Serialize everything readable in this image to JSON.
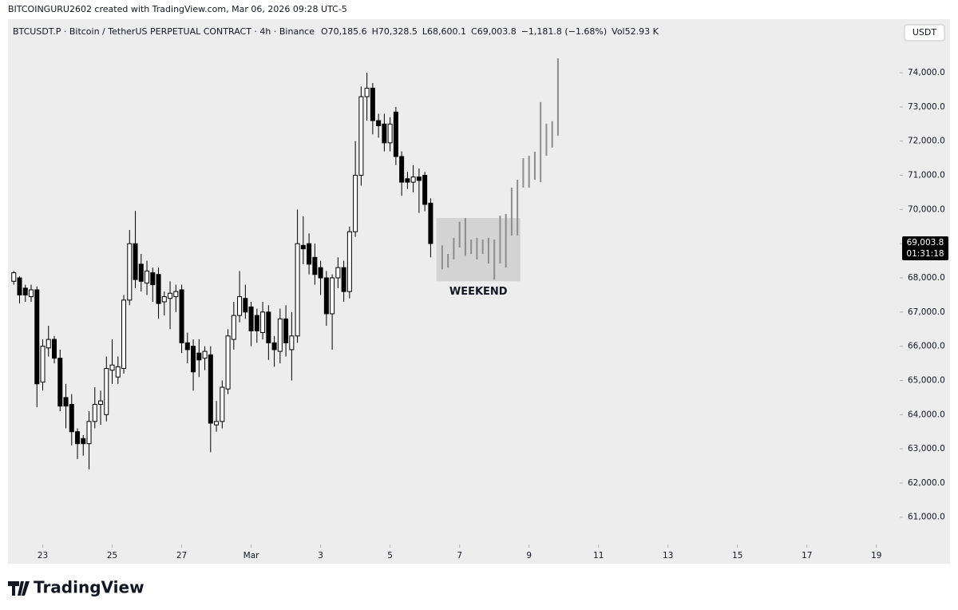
{
  "chart_data": {
    "type": "candlestick",
    "header": "BITCOINGURU2602 created with TradingView.com, Mar 06, 2026 09:28 UTC-5",
    "symbol": "BTCUSDT.P · Bitcoin / TetherUS PERPETUAL CONTRACT · 4h · Binance",
    "ohlc_text": [
      "O70,185.6",
      "H70,328.5",
      "L68,600.1",
      "C69,003.8",
      "−1,181.8 (−1.68%)",
      "Vol52.93 K"
    ],
    "currency": "USDT",
    "brand": "TradingView",
    "xlim": [
      0,
      615
    ],
    "xticks": [
      {
        "value": 24,
        "label": "23"
      },
      {
        "value": 72,
        "label": "25"
      },
      {
        "value": 120,
        "label": "27"
      },
      {
        "value": 168,
        "label": "Mar"
      },
      {
        "value": 216,
        "label": "3"
      },
      {
        "value": 264,
        "label": "5"
      },
      {
        "value": 312,
        "label": "7"
      },
      {
        "value": 360,
        "label": "9"
      },
      {
        "value": 408,
        "label": "11"
      },
      {
        "value": 456,
        "label": "13"
      },
      {
        "value": 504,
        "label": "15"
      },
      {
        "value": 552,
        "label": "17"
      },
      {
        "value": 600,
        "label": "19"
      }
    ],
    "ylim": [
      60200,
      75100
    ],
    "yticks": [
      {
        "value": 61000,
        "label": "61,000.0"
      },
      {
        "value": 62000,
        "label": "62,000.0"
      },
      {
        "value": 63000,
        "label": "63,000.0"
      },
      {
        "value": 64000,
        "label": "64,000.0"
      },
      {
        "value": 65000,
        "label": "65,000.0"
      },
      {
        "value": 66000,
        "label": "66,000.0"
      },
      {
        "value": 67000,
        "label": "67,000.0"
      },
      {
        "value": 68000,
        "label": "68,000.0"
      },
      {
        "value": 69000,
        "label": "69,000.0"
      },
      {
        "value": 70000,
        "label": "70,000.0"
      },
      {
        "value": 71000,
        "label": "71,000.0"
      },
      {
        "value": 72000,
        "label": "72,000.0"
      },
      {
        "value": 73000,
        "label": "73,000.0"
      },
      {
        "value": 74000,
        "label": "74,000.0"
      }
    ],
    "last_price": {
      "value": 69003.8,
      "label": "69,003.8"
    },
    "countdown": "01:31:18",
    "up_color": "#ffffff",
    "down_color": "#000000",
    "candles": {
      "x": [
        4,
        8,
        12,
        16,
        20,
        24,
        28,
        32,
        36,
        40,
        44,
        48,
        52,
        56,
        60,
        64,
        68,
        72,
        76,
        80,
        84,
        88,
        92,
        96,
        100,
        104,
        108,
        112,
        116,
        120,
        124,
        128,
        132,
        136,
        140,
        144,
        148,
        152,
        156,
        160,
        164,
        168,
        172,
        176,
        180,
        184,
        188,
        192,
        196,
        200,
        204,
        208,
        212,
        216,
        220,
        224,
        228,
        232,
        236,
        240,
        244,
        248,
        252,
        256,
        260,
        264,
        268,
        272,
        276,
        280,
        284,
        288,
        292
      ],
      "open": [
        67900,
        68000,
        67700,
        67450,
        67650,
        64950,
        65950,
        66200,
        65650,
        64500,
        64300,
        63500,
        63300,
        63150,
        63800,
        64300,
        64000,
        65300,
        65100,
        65350,
        67350,
        69000,
        68400,
        67850,
        68150,
        68100,
        67300,
        67400,
        67450,
        67650,
        66100,
        66000,
        65800,
        65650,
        65750,
        63700,
        63800,
        64750,
        66200,
        66900,
        67400,
        67150,
        66900,
        66400,
        67000,
        66100,
        65850,
        66800,
        65900,
        66300,
        68950,
        69000,
        68600,
        68300,
        68000,
        66950,
        68000,
        68300,
        67600,
        69350,
        71000,
        73300,
        73550,
        72600,
        72500,
        71950,
        72850,
        71550,
        70900,
        70800,
        70950,
        71000,
        70185.6
      ],
      "high": [
        68200,
        68050,
        67800,
        67800,
        67750,
        66200,
        66600,
        66300,
        65900,
        64900,
        64600,
        63600,
        63400,
        64100,
        64800,
        64700,
        65700,
        66200,
        65700,
        67500,
        69400,
        69960,
        68700,
        68500,
        68300,
        68300,
        67600,
        67900,
        67800,
        67800,
        66400,
        66200,
        66200,
        66000,
        66000,
        64400,
        65000,
        66500,
        67300,
        68200,
        67800,
        67300,
        67100,
        67300,
        67200,
        66300,
        67100,
        67200,
        67000,
        70000,
        69800,
        69300,
        69000,
        68500,
        68200,
        68100,
        68600,
        68500,
        69500,
        72000,
        73600,
        74000,
        73700,
        72800,
        72800,
        72700,
        73000,
        71700,
        71100,
        71300,
        71200,
        71100,
        70328.5
      ],
      "low": [
        67800,
        67250,
        67300,
        67300,
        64220,
        64700,
        65700,
        65500,
        64100,
        63600,
        63100,
        62700,
        62800,
        62400,
        63600,
        63700,
        63800,
        64900,
        64900,
        65200,
        67200,
        67700,
        67600,
        67500,
        67300,
        66800,
        66900,
        66500,
        67000,
        65800,
        65500,
        64700,
        65100,
        65300,
        62900,
        63500,
        63600,
        64600,
        65900,
        66700,
        66800,
        66000,
        66100,
        66200,
        65600,
        65400,
        65500,
        65700,
        65000,
        66100,
        68400,
        68100,
        67800,
        67500,
        66600,
        65900,
        67700,
        67300,
        67400,
        69200,
        70700,
        72600,
        72200,
        72100,
        71700,
        71700,
        71300,
        70400,
        70600,
        70500,
        69900,
        69950,
        68600.1
      ],
      "close": [
        68150,
        67500,
        67500,
        67650,
        64900,
        66000,
        66200,
        65650,
        64250,
        64250,
        63500,
        63150,
        63150,
        63800,
        64300,
        64400,
        65350,
        65450,
        65400,
        67350,
        69000,
        67950,
        67900,
        68200,
        67800,
        67250,
        67450,
        67550,
        67600,
        66100,
        65900,
        65250,
        65600,
        65850,
        63750,
        63800,
        64800,
        66300,
        66900,
        67450,
        67000,
        66450,
        66450,
        67000,
        66100,
        65900,
        66800,
        66100,
        66300,
        69000,
        68850,
        68400,
        68100,
        68000,
        66950,
        68000,
        68300,
        67600,
        69350,
        71000,
        73300,
        73550,
        72600,
        72450,
        71950,
        72500,
        71550,
        70800,
        70800,
        70950,
        70850,
        70150,
        69003.8
      ]
    },
    "projection": {
      "color": "#8c8c8c",
      "x": [
        300,
        304,
        308,
        312,
        316,
        320,
        324,
        328,
        332,
        336,
        340,
        344,
        348,
        352,
        356,
        360,
        364,
        368,
        372,
        376,
        380
      ],
      "high": [
        68950,
        68700,
        69170,
        69640,
        69750,
        69120,
        69170,
        69120,
        69170,
        69120,
        69820,
        69870,
        70640,
        70870,
        71500,
        71570,
        71690,
        73140,
        72510,
        72580,
        74420
      ],
      "low": [
        68250,
        68300,
        68540,
        68890,
        68650,
        68700,
        68540,
        68700,
        68420,
        67950,
        68420,
        68300,
        69240,
        69240,
        70640,
        70640,
        70870,
        70800,
        71570,
        71810,
        72160
      ]
    },
    "annotation": {
      "text": "WEEKEND",
      "x": [
        296,
        354
      ],
      "y": [
        67900,
        69750
      ],
      "color": "#d3d3d3"
    }
  }
}
